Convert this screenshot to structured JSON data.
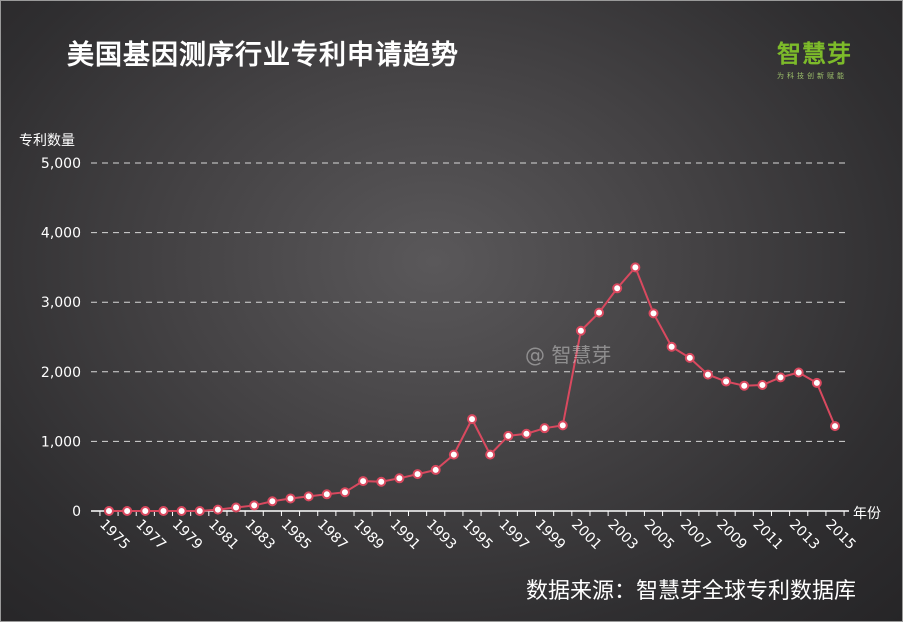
{
  "header": {
    "title": "美国基因测序行业专利申请趋势",
    "logo_main": "智慧芽",
    "logo_sub": "为科技创新赋能",
    "watermark": "@ 智慧芽",
    "source": "数据来源：智慧芽全球专利数据库"
  },
  "colors": {
    "line": "#d9495f",
    "marker_fill": "#ffffff",
    "grid": "#d8d8d8",
    "axis": "#ffffff",
    "logo": "#7dbb2a"
  },
  "chart_data": {
    "type": "line",
    "title": "美国基因测序行业专利申请趋势",
    "ylabel": "专利数量",
    "xlabel": "年份",
    "ylim": [
      0,
      5000
    ],
    "yticks": [
      0,
      1000,
      2000,
      3000,
      4000,
      5000
    ],
    "ytick_labels": [
      "0",
      "1,000",
      "2,000",
      "3,000",
      "4,000",
      "5,000"
    ],
    "xtick_labels": [
      "1975",
      "1977",
      "1979",
      "1981",
      "1983",
      "1985",
      "1987",
      "1989",
      "1991",
      "1993",
      "1995",
      "1997",
      "1999",
      "2001",
      "2003",
      "2005",
      "2007",
      "2009",
      "2011",
      "2013",
      "2015"
    ],
    "grid": true,
    "grid_style": "dashed-horizontal",
    "series": [
      {
        "x": [
          1975,
          1976,
          1977,
          1978,
          1979,
          1980,
          1981,
          1982,
          1983,
          1984,
          1985,
          1986,
          1987,
          1988,
          1989,
          1990,
          1991,
          1992,
          1993,
          1994,
          1995,
          1996,
          1997,
          1998,
          1999,
          2000,
          2001,
          2002,
          2003,
          2004,
          2005,
          2006,
          2007,
          2008,
          2009,
          2010,
          2011,
          2012,
          2013,
          2014,
          2015
        ],
        "values": [
          0,
          0,
          0,
          0,
          0,
          0,
          20,
          50,
          80,
          140,
          180,
          210,
          240,
          270,
          430,
          420,
          470,
          530,
          590,
          810,
          1320,
          810,
          1080,
          1110,
          1190,
          1230,
          2590,
          2850,
          3200,
          3500,
          2840,
          2360,
          2200,
          1960,
          1860,
          1800,
          1810,
          1920,
          1990,
          1840,
          1220
        ]
      }
    ]
  }
}
